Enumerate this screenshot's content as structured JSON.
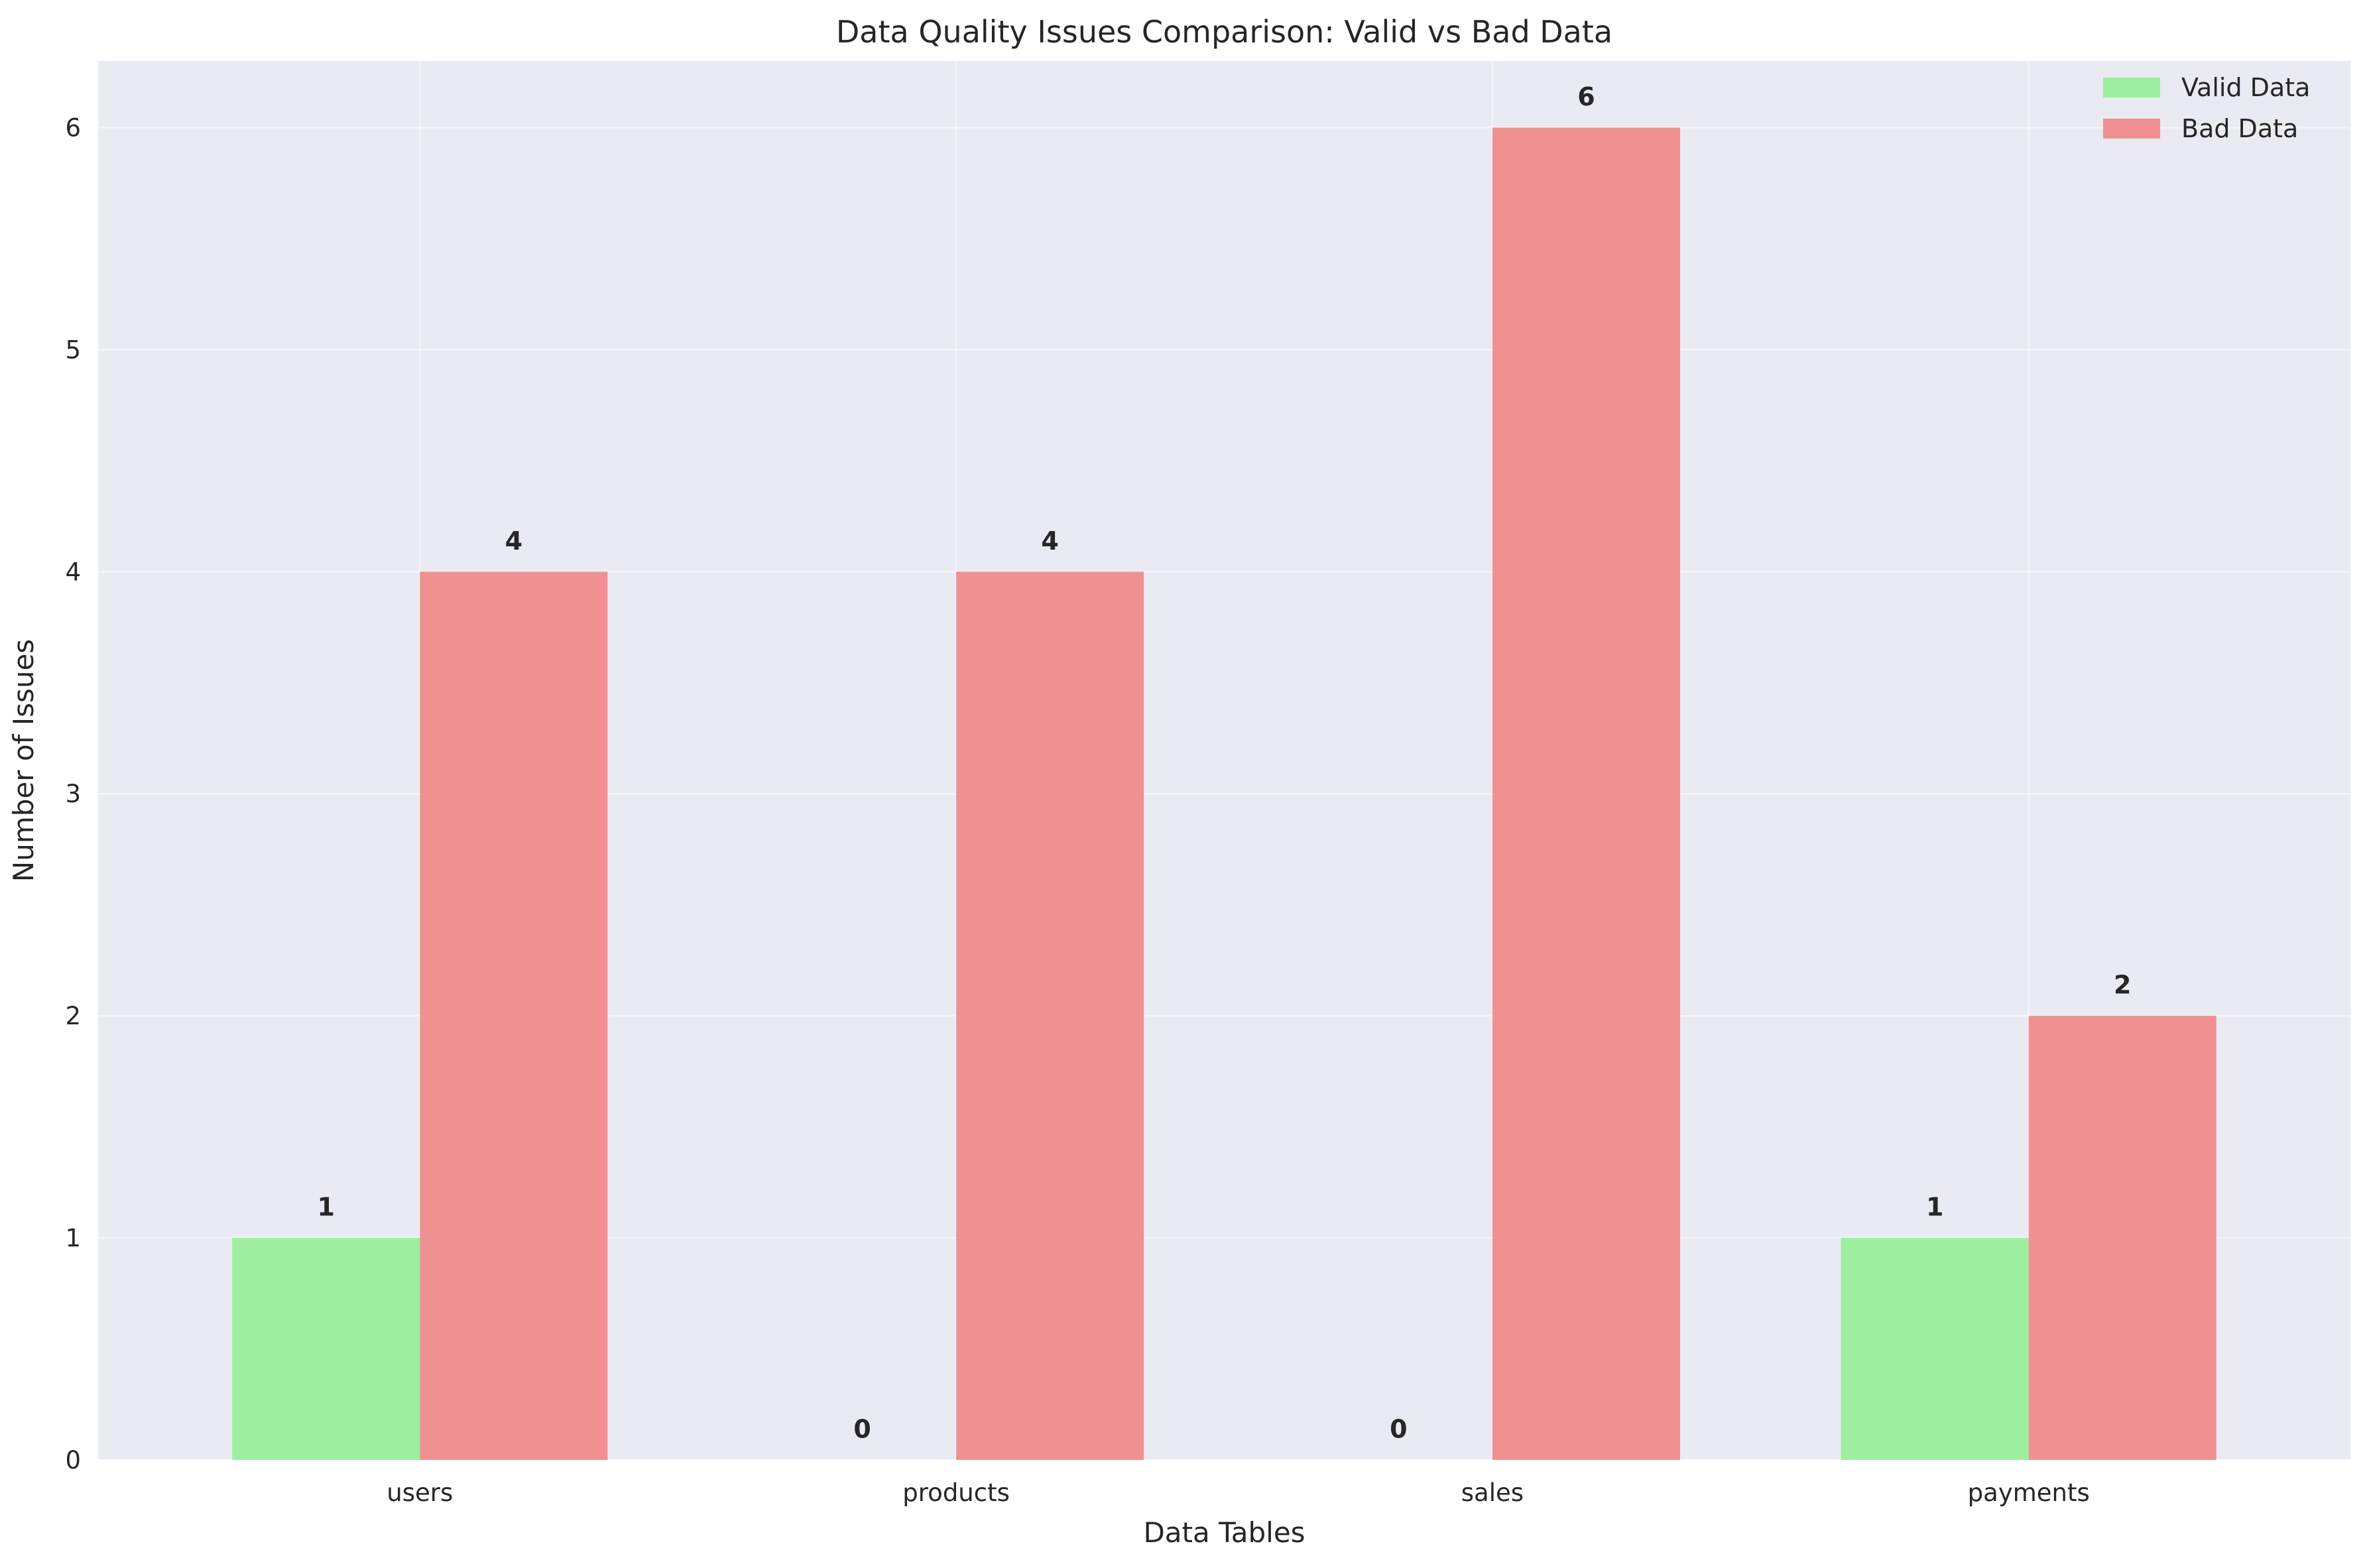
{
  "chart_data": {
    "type": "bar",
    "title": "Data Quality Issues Comparison: Valid vs Bad Data",
    "xlabel": "Data Tables",
    "ylabel": "Number of Issues",
    "categories": [
      "users",
      "products",
      "sales",
      "payments"
    ],
    "series": [
      {
        "name": "Valid Data",
        "values": [
          1,
          0,
          0,
          1
        ],
        "color": "#90ee90"
      },
      {
        "name": "Bad Data",
        "values": [
          4,
          4,
          6,
          2
        ],
        "color": "#f08080"
      }
    ],
    "ylim": [
      0,
      6.3
    ],
    "yticks": [
      0,
      1,
      2,
      3,
      4,
      5,
      6
    ],
    "grid": true,
    "legend_position": "top-right",
    "background_color": "#eaeaf2"
  }
}
